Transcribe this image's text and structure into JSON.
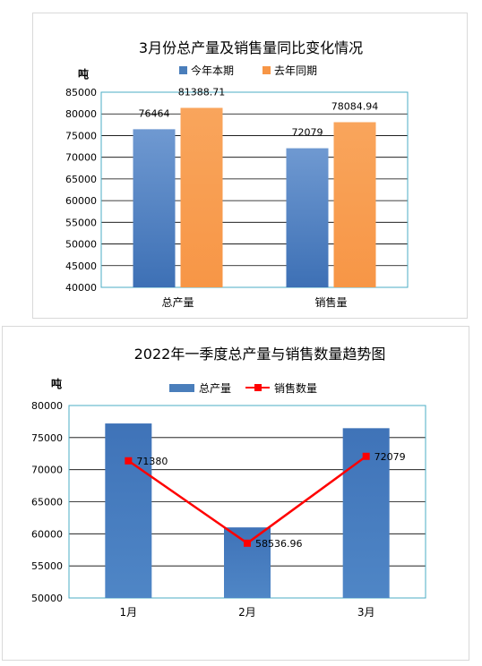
{
  "chart_data": [
    {
      "type": "bar",
      "title": "3月份总产量及销售量同比变化情况",
      "unit_label": "吨",
      "categories": [
        "总产量",
        "销售量"
      ],
      "series": [
        {
          "name": "今年本期",
          "values": [
            76464,
            72079
          ],
          "labels": [
            "76464",
            "72079"
          ],
          "color": "#4a7ebb"
        },
        {
          "name": "去年同期",
          "values": [
            81388.71,
            78084.94
          ],
          "labels": [
            "81388.71",
            "78084.94"
          ],
          "color": "#f79646"
        }
      ],
      "ylim": [
        40000,
        85000
      ],
      "yticks": [
        "40000",
        "45000",
        "50000",
        "55000",
        "60000",
        "65000",
        "70000",
        "75000",
        "80000",
        "85000"
      ],
      "grid": true,
      "legend": "top"
    },
    {
      "type": "bar-line",
      "title": "2022年一季度总产量与销售数量趋势图",
      "unit_label": "吨",
      "categories": [
        "1月",
        "2月",
        "3月"
      ],
      "series": [
        {
          "name": "总产量",
          "type": "bar",
          "values": [
            77200,
            61000,
            76464
          ],
          "color": "#4a7ebb"
        },
        {
          "name": "销售数量",
          "type": "line",
          "values": [
            71380,
            58536.96,
            72079
          ],
          "labels": [
            "71380",
            "58536.96",
            "72079"
          ],
          "color": "#ff0000"
        }
      ],
      "ylim": [
        50000,
        80000
      ],
      "yticks": [
        "50000",
        "55000",
        "60000",
        "65000",
        "70000",
        "75000",
        "80000"
      ],
      "grid": true,
      "legend": "top"
    }
  ]
}
